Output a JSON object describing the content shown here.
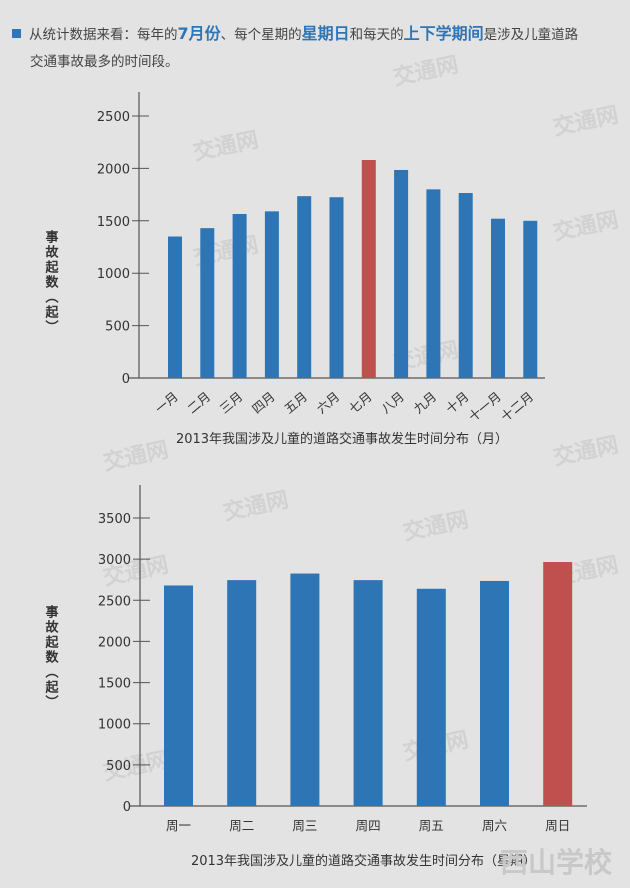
{
  "intro": {
    "parts": [
      "从统计数据来看：每年的",
      "7月份",
      "、每个星期的",
      "星期日",
      "和每天的",
      "上下学期间",
      "是涉及儿童道路"
    ],
    "line2": "交通事故最多的时间段。"
  },
  "watermark": "交通网",
  "footer_logo": "西山学校",
  "colors": {
    "bar": "#2e75b6",
    "highlight": "#c0504d",
    "highlight_label": "#c0504d"
  },
  "chart_data": [
    {
      "type": "bar",
      "title": "2013年我国涉及儿童的道路交通事故发生时间分布（月）",
      "ylabel": "事故起数（起）",
      "xlabel": "",
      "ylim": [
        0,
        2500
      ],
      "yticks": [
        0,
        500,
        1000,
        1500,
        2000,
        2500
      ],
      "grid": false,
      "categories": [
        "一月",
        "二月",
        "三月",
        "四月",
        "五月",
        "六月",
        "七月",
        "八月",
        "九月",
        "十月",
        "十一月",
        "十二月"
      ],
      "values": [
        1350,
        1430,
        1565,
        1590,
        1735,
        1725,
        2080,
        1985,
        1800,
        1765,
        1520,
        1500
      ],
      "highlight_index": 6
    },
    {
      "type": "bar",
      "title": "2013年我国涉及儿童的道路交通事故发生时间分布（星期）",
      "ylabel": "事故起数（起）",
      "xlabel": "",
      "ylim": [
        0,
        3500
      ],
      "yticks": [
        0,
        500,
        1000,
        1500,
        2000,
        2500,
        3000,
        3500
      ],
      "grid": false,
      "categories": [
        "周一",
        "周二",
        "周三",
        "周四",
        "周五",
        "周六",
        "周日"
      ],
      "values": [
        2680,
        2745,
        2825,
        2745,
        2640,
        2735,
        2965
      ],
      "highlight_index": 6
    }
  ]
}
